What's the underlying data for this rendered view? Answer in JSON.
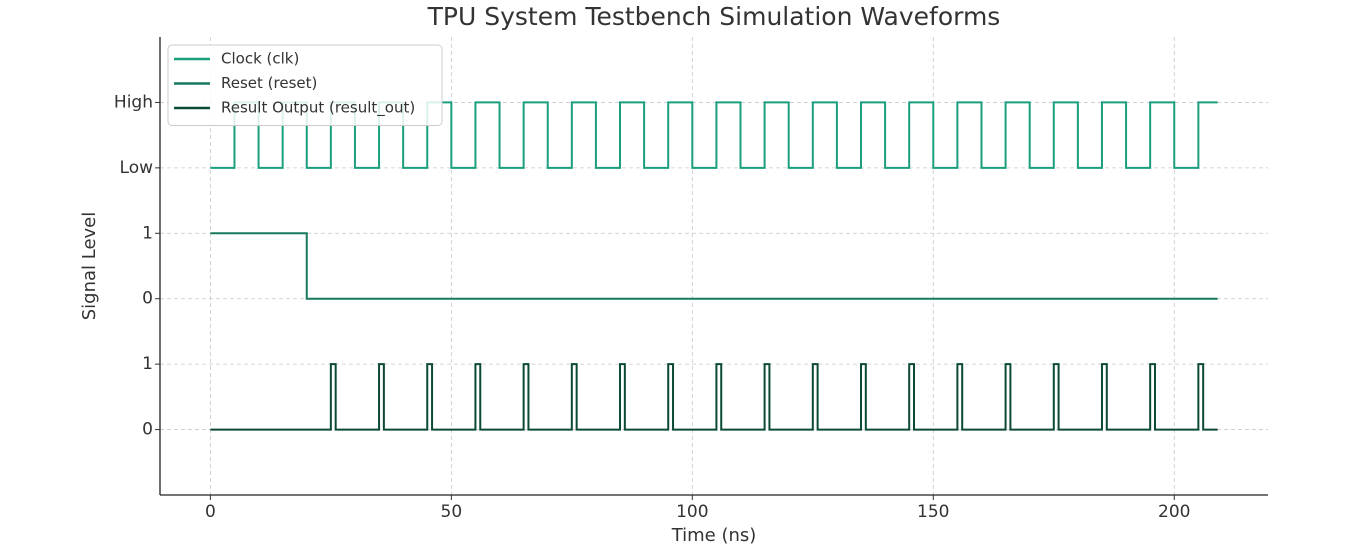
{
  "chart_data": {
    "type": "line",
    "title": "TPU System Testbench Simulation Waveforms",
    "xlabel": "Time (ns)",
    "ylabel": "Signal Level",
    "xlim": [
      -10.45,
      219.45
    ],
    "ylim": [
      -1,
      6
    ],
    "xticks": [
      0,
      50,
      100,
      150,
      200
    ],
    "yticks": [
      0,
      1,
      {
        "value": 2,
        "label": "0"
      },
      {
        "value": 3,
        "label": "1"
      },
      {
        "value": 4,
        "label": "Low"
      },
      {
        "value": 5,
        "label": "High"
      }
    ],
    "grid": true,
    "legend": "upper left",
    "series": [
      {
        "name": "Clock (clk)",
        "color": "#1a9e7e",
        "x": [
          0,
          5,
          5,
          10,
          10,
          15,
          15,
          20,
          20,
          25,
          25,
          30,
          30,
          35,
          35,
          40,
          40,
          45,
          45,
          50,
          50,
          55,
          55,
          60,
          60,
          65,
          65,
          70,
          70,
          75,
          75,
          80,
          80,
          85,
          85,
          90,
          90,
          95,
          95,
          100,
          100,
          105,
          105,
          110,
          110,
          115,
          115,
          120,
          120,
          125,
          125,
          130,
          130,
          135,
          135,
          140,
          140,
          145,
          145,
          150,
          150,
          155,
          155,
          160,
          160,
          165,
          165,
          170,
          170,
          175,
          175,
          180,
          180,
          185,
          185,
          190,
          190,
          195,
          195,
          200,
          200,
          205,
          205,
          209
        ],
        "values": [
          4,
          4,
          5,
          5,
          4,
          4,
          5,
          5,
          4,
          4,
          5,
          5,
          4,
          4,
          5,
          5,
          4,
          4,
          5,
          5,
          4,
          4,
          5,
          5,
          4,
          4,
          5,
          5,
          4,
          4,
          5,
          5,
          4,
          4,
          5,
          5,
          4,
          4,
          5,
          5,
          4,
          4,
          5,
          5,
          4,
          4,
          5,
          5,
          4,
          4,
          5,
          5,
          4,
          4,
          5,
          5,
          4,
          4,
          5,
          5,
          4,
          4,
          5,
          5,
          4,
          4,
          5,
          5,
          4,
          4,
          5,
          5,
          4,
          4,
          5,
          5,
          4,
          4,
          5,
          5,
          4,
          4,
          5,
          5
        ]
      },
      {
        "name": "Reset (reset)",
        "color": "#177a5e",
        "x": [
          0,
          20,
          20,
          209
        ],
        "values": [
          3,
          3,
          2,
          2
        ]
      },
      {
        "name": "Result Output (result_out)",
        "color": "#0b4a36",
        "x": [
          0,
          25,
          25,
          26,
          26,
          35,
          35,
          36,
          36,
          45,
          45,
          46,
          46,
          55,
          55,
          56,
          56,
          65,
          65,
          66,
          66,
          75,
          75,
          76,
          76,
          85,
          85,
          86,
          86,
          95,
          95,
          96,
          96,
          105,
          105,
          106,
          106,
          115,
          115,
          116,
          116,
          125,
          125,
          126,
          126,
          135,
          135,
          136,
          136,
          145,
          145,
          146,
          146,
          155,
          155,
          156,
          156,
          165,
          165,
          166,
          166,
          175,
          175,
          176,
          176,
          185,
          185,
          186,
          186,
          195,
          195,
          196,
          196,
          205,
          205,
          206,
          206,
          209
        ],
        "values": [
          0,
          0,
          1,
          1,
          0,
          0,
          1,
          1,
          0,
          0,
          1,
          1,
          0,
          0,
          1,
          1,
          0,
          0,
          1,
          1,
          0,
          0,
          1,
          1,
          0,
          0,
          1,
          1,
          0,
          0,
          1,
          1,
          0,
          0,
          1,
          1,
          0,
          0,
          1,
          1,
          0,
          0,
          1,
          1,
          0,
          0,
          1,
          1,
          0,
          0,
          1,
          1,
          0,
          0,
          1,
          1,
          0,
          0,
          1,
          1,
          0,
          0,
          1,
          1,
          0,
          0,
          1,
          1,
          0,
          0,
          1,
          1,
          0,
          0,
          1,
          1,
          0,
          0
        ]
      }
    ]
  }
}
